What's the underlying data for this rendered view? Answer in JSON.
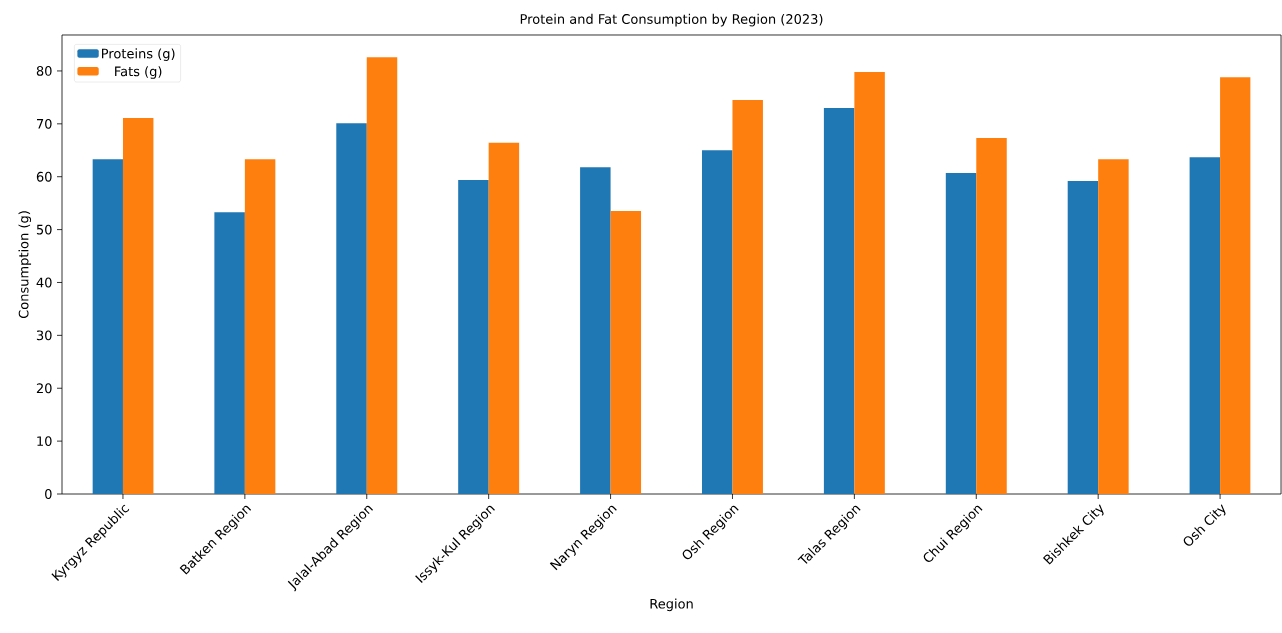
{
  "chart_data": {
    "type": "bar",
    "title": "Protein and Fat Consumption by Region (2023)",
    "xlabel": "Region",
    "ylabel": "Consumption (g)",
    "categories": [
      "Kyrgyz Republic",
      "Batken Region",
      "Jalal-Abad Region",
      "Issyk-Kul Region",
      "Naryn Region",
      "Osh Region",
      "Talas Region",
      "Chui Region",
      "Bishkek City",
      "Osh City"
    ],
    "series": [
      {
        "name": "Proteins (g)",
        "color": "#1f77b4",
        "values": [
          63.3,
          53.3,
          70.1,
          59.4,
          61.8,
          65.0,
          73.0,
          60.7,
          59.2,
          63.7
        ]
      },
      {
        "name": "Fats (g)",
        "color": "#ff7f0e",
        "values": [
          71.1,
          63.3,
          82.6,
          66.4,
          53.5,
          74.5,
          79.8,
          67.3,
          63.3,
          78.8
        ]
      }
    ],
    "ylim": [
      0,
      86.8
    ],
    "yticks": [
      0,
      10,
      20,
      30,
      40,
      50,
      60,
      70,
      80
    ],
    "grid": false,
    "legend": "top left"
  }
}
